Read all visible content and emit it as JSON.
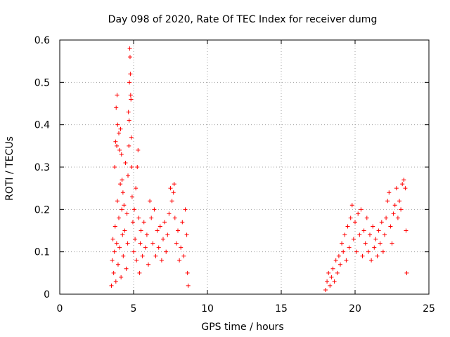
{
  "chart_data": {
    "type": "scatter",
    "title": "Day 098 of 2020, Rate Of TEC Index for receiver dumg",
    "xlabel": "GPS time / hours",
    "ylabel": "ROTI / TECUs",
    "xlim": [
      0,
      25
    ],
    "ylim": [
      0,
      0.6
    ],
    "xticks": [
      "0",
      "5",
      "10",
      "15",
      "20",
      "25"
    ],
    "yticks": [
      "0",
      "0.1",
      "0.2",
      "0.3",
      "0.4",
      "0.5",
      "0.6"
    ],
    "grid": true,
    "marker": "plus",
    "color": "#ff0000",
    "series": [
      {
        "points": [
          [
            3.5,
            0.02
          ],
          [
            3.55,
            0.08
          ],
          [
            3.6,
            0.13
          ],
          [
            3.65,
            0.05
          ],
          [
            3.7,
            0.1
          ],
          [
            3.75,
            0.16
          ],
          [
            3.8,
            0.03
          ],
          [
            3.85,
            0.12
          ],
          [
            3.9,
            0.22
          ],
          [
            3.95,
            0.07
          ],
          [
            4.0,
            0.18
          ],
          [
            4.05,
            0.11
          ],
          [
            4.1,
            0.26
          ],
          [
            4.15,
            0.04
          ],
          [
            4.2,
            0.2
          ],
          [
            4.25,
            0.14
          ],
          [
            3.72,
            0.3
          ],
          [
            3.78,
            0.36
          ],
          [
            3.82,
            0.44
          ],
          [
            3.88,
            0.47
          ],
          [
            3.86,
            0.35
          ],
          [
            3.92,
            0.4
          ],
          [
            4.0,
            0.38
          ],
          [
            4.05,
            0.34
          ],
          [
            4.12,
            0.39
          ],
          [
            4.18,
            0.33
          ],
          [
            4.22,
            0.27
          ],
          [
            4.28,
            0.24
          ],
          [
            4.3,
            0.09
          ],
          [
            4.35,
            0.21
          ],
          [
            4.4,
            0.15
          ],
          [
            4.45,
            0.31
          ],
          [
            4.5,
            0.06
          ],
          [
            4.55,
            0.19
          ],
          [
            4.6,
            0.12
          ],
          [
            4.62,
            0.28
          ],
          [
            4.65,
            0.43
          ],
          [
            4.68,
            0.35
          ],
          [
            4.7,
            0.41
          ],
          [
            4.72,
            0.5
          ],
          [
            4.74,
            0.58
          ],
          [
            4.76,
            0.56
          ],
          [
            4.78,
            0.52
          ],
          [
            4.8,
            0.47
          ],
          [
            4.82,
            0.46
          ],
          [
            4.85,
            0.37
          ],
          [
            4.88,
            0.3
          ],
          [
            4.9,
            0.23
          ],
          [
            4.95,
            0.17
          ],
          [
            5.0,
            0.1
          ],
          [
            5.05,
            0.2
          ],
          [
            5.1,
            0.13
          ],
          [
            5.15,
            0.25
          ],
          [
            5.2,
            0.08
          ],
          [
            5.25,
            0.3
          ],
          [
            5.3,
            0.34
          ],
          [
            5.35,
            0.18
          ],
          [
            5.4,
            0.05
          ],
          [
            5.45,
            0.12
          ],
          [
            5.5,
            0.15
          ],
          [
            5.6,
            0.09
          ],
          [
            5.7,
            0.17
          ],
          [
            5.8,
            0.11
          ],
          [
            5.9,
            0.14
          ],
          [
            6.0,
            0.07
          ],
          [
            6.1,
            0.22
          ],
          [
            6.2,
            0.18
          ],
          [
            6.3,
            0.12
          ],
          [
            6.4,
            0.2
          ],
          [
            6.5,
            0.09
          ],
          [
            6.6,
            0.15
          ],
          [
            6.7,
            0.11
          ],
          [
            6.8,
            0.16
          ],
          [
            6.9,
            0.08
          ],
          [
            7.0,
            0.13
          ],
          [
            7.1,
            0.17
          ],
          [
            7.2,
            0.1
          ],
          [
            7.3,
            0.14
          ],
          [
            7.4,
            0.19
          ],
          [
            7.5,
            0.25
          ],
          [
            7.6,
            0.22
          ],
          [
            7.7,
            0.24
          ],
          [
            7.75,
            0.26
          ],
          [
            7.8,
            0.18
          ],
          [
            7.9,
            0.12
          ],
          [
            8.0,
            0.15
          ],
          [
            8.1,
            0.08
          ],
          [
            8.2,
            0.11
          ],
          [
            8.3,
            0.17
          ],
          [
            8.4,
            0.09
          ],
          [
            8.5,
            0.2
          ],
          [
            8.6,
            0.14
          ],
          [
            8.65,
            0.05
          ],
          [
            8.7,
            0.02
          ],
          [
            18.0,
            0.01
          ],
          [
            18.1,
            0.03
          ],
          [
            18.2,
            0.05
          ],
          [
            18.3,
            0.02
          ],
          [
            18.4,
            0.04
          ],
          [
            18.5,
            0.06
          ],
          [
            18.6,
            0.03
          ],
          [
            18.7,
            0.08
          ],
          [
            18.8,
            0.05
          ],
          [
            18.9,
            0.09
          ],
          [
            19.0,
            0.07
          ],
          [
            19.1,
            0.12
          ],
          [
            19.2,
            0.1
          ],
          [
            19.3,
            0.14
          ],
          [
            19.4,
            0.08
          ],
          [
            19.5,
            0.16
          ],
          [
            19.6,
            0.11
          ],
          [
            19.7,
            0.18
          ],
          [
            19.8,
            0.21
          ],
          [
            19.9,
            0.13
          ],
          [
            20.0,
            0.17
          ],
          [
            20.1,
            0.1
          ],
          [
            20.2,
            0.19
          ],
          [
            20.3,
            0.14
          ],
          [
            20.4,
            0.2
          ],
          [
            20.5,
            0.09
          ],
          [
            20.6,
            0.15
          ],
          [
            20.7,
            0.12
          ],
          [
            20.8,
            0.18
          ],
          [
            20.9,
            0.1
          ],
          [
            21.0,
            0.14
          ],
          [
            21.1,
            0.08
          ],
          [
            21.2,
            0.16
          ],
          [
            21.3,
            0.11
          ],
          [
            21.4,
            0.13
          ],
          [
            21.5,
            0.09
          ],
          [
            21.6,
            0.15
          ],
          [
            21.7,
            0.12
          ],
          [
            21.8,
            0.17
          ],
          [
            21.9,
            0.1
          ],
          [
            22.0,
            0.14
          ],
          [
            22.1,
            0.18
          ],
          [
            22.2,
            0.22
          ],
          [
            22.3,
            0.24
          ],
          [
            22.4,
            0.16
          ],
          [
            22.5,
            0.12
          ],
          [
            22.6,
            0.19
          ],
          [
            22.7,
            0.21
          ],
          [
            22.8,
            0.25
          ],
          [
            22.9,
            0.18
          ],
          [
            23.0,
            0.22
          ],
          [
            23.1,
            0.2
          ],
          [
            23.2,
            0.26
          ],
          [
            23.3,
            0.27
          ],
          [
            23.4,
            0.25
          ],
          [
            23.45,
            0.15
          ],
          [
            23.5,
            0.05
          ]
        ]
      }
    ]
  }
}
